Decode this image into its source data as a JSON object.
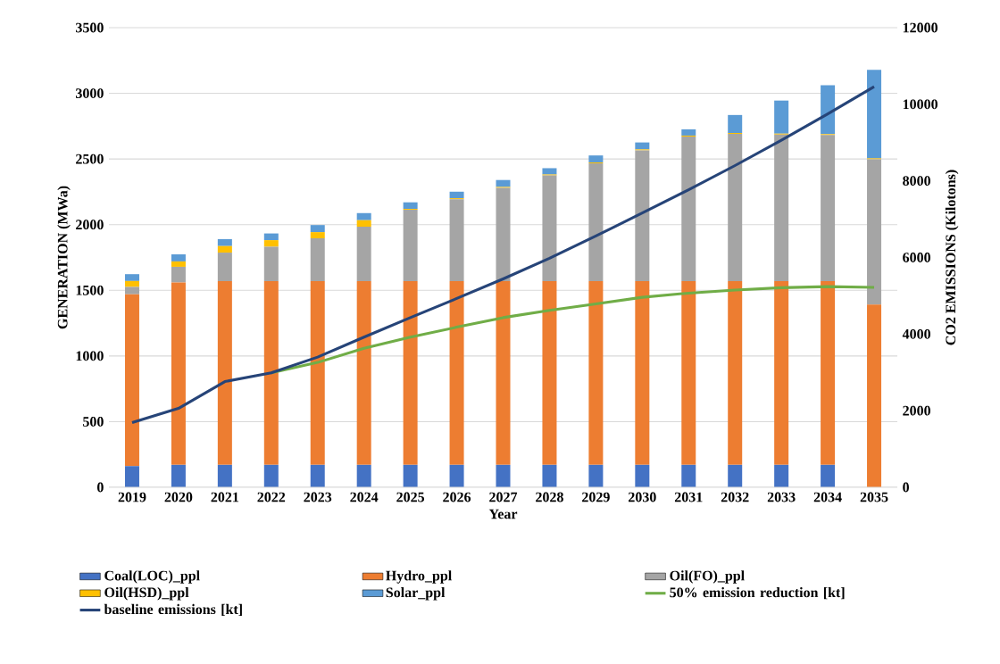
{
  "chart_data": {
    "type": "bar",
    "stacked": true,
    "xlabel": "Year",
    "ylabel": "GENERATION (MWa)",
    "y2label": "CO2 EMISSIONS (Kilotons)",
    "categories": [
      "2019",
      "2020",
      "2021",
      "2022",
      "2023",
      "2024",
      "2025",
      "2026",
      "2027",
      "2028",
      "2029",
      "2030",
      "2031",
      "2032",
      "2033",
      "2034",
      "2035"
    ],
    "series": [
      {
        "name": "Coal(LOC)_ppl",
        "color": "#4472c4",
        "values": [
          162,
          172,
          172,
          172,
          172,
          172,
          172,
          172,
          172,
          172,
          172,
          172,
          172,
          172,
          172,
          172,
          0
        ]
      },
      {
        "name": "Hydro_ppl",
        "color": "#ed7d31",
        "values": [
          1308,
          1388,
          1398,
          1398,
          1398,
          1398,
          1398,
          1398,
          1398,
          1398,
          1398,
          1398,
          1398,
          1398,
          1398,
          1398,
          1391
        ]
      },
      {
        "name": "Oil(FO)_ppl",
        "color": "#a5a5a5",
        "values": [
          56,
          119,
          217,
          262,
          326,
          414,
          543,
          624,
          710,
          805,
          897,
          996,
          1101,
          1121,
          1116,
          1112,
          1107
        ]
      },
      {
        "name": "Oil(HSD)_ppl",
        "color": "#ffc000",
        "values": [
          45,
          41,
          50,
          50,
          47,
          50,
          7,
          7,
          7,
          7,
          7,
          7,
          7,
          7,
          7,
          7,
          7
        ]
      },
      {
        "name": "Solar_ppl",
        "color": "#5b9bd5",
        "values": [
          52,
          54,
          53,
          51,
          54,
          54,
          50,
          50,
          53,
          48,
          53,
          53,
          48,
          137,
          252,
          372,
          674
        ]
      },
      {
        "name": "50% emission reduction [kt]",
        "type": "line",
        "axis": "y2",
        "color": "#70ad47",
        "values": [
          null,
          null,
          null,
          2990,
          3260,
          3630,
          3920,
          4180,
          4430,
          4620,
          4790,
          4960,
          5070,
          5150,
          5210,
          5240,
          5220
        ]
      },
      {
        "name": "baseline emissions [kt]",
        "type": "line",
        "axis": "y2",
        "color": "#264478",
        "values": [
          1690,
          2060,
          2760,
          2990,
          3400,
          3920,
          4430,
          4930,
          5440,
          5980,
          6560,
          7160,
          7770,
          8400,
          9060,
          9750,
          10460
        ]
      }
    ],
    "ylim": [
      0,
      3500
    ],
    "yticks": [
      0,
      500,
      1000,
      1500,
      2000,
      2500,
      3000,
      3500
    ],
    "y2lim": [
      0,
      12000
    ],
    "y2ticks": [
      0,
      2000,
      4000,
      6000,
      8000,
      10000,
      12000
    ],
    "grid": "y",
    "legend": "bottom"
  }
}
